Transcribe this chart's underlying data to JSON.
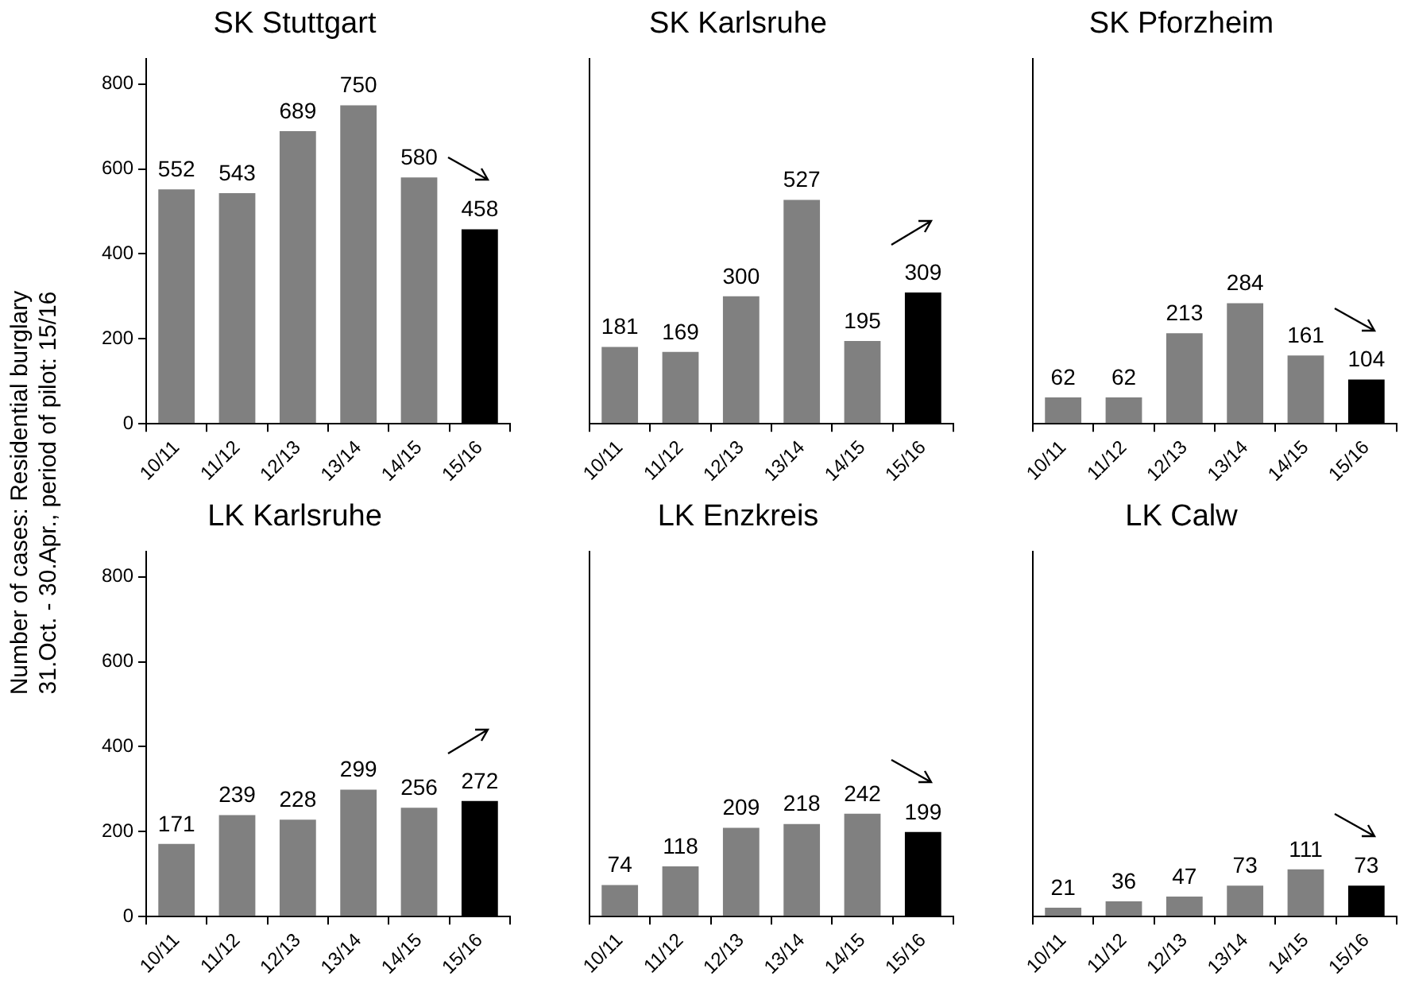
{
  "chart_data": [
    {
      "type": "bar",
      "title": "SK Stuttgart",
      "ylabel": "Number of cases: Residential burglary\n31.Oct. - 30.Apr., period of pilot: 15/16",
      "categories": [
        "10/11",
        "11/12",
        "12/13",
        "13/14",
        "14/15",
        "15/16"
      ],
      "values": [
        552,
        543,
        689,
        750,
        580,
        458
      ],
      "colors": [
        "#808080",
        "#808080",
        "#808080",
        "#808080",
        "#808080",
        "#000000"
      ],
      "ylim": [
        0,
        860
      ],
      "yticks": [
        0,
        200,
        400,
        600,
        800
      ],
      "data_labels": true,
      "grid": false,
      "legend": false
    },
    {
      "type": "bar",
      "title": "SK Karlsruhe",
      "categories": [
        "10/11",
        "11/12",
        "12/13",
        "13/14",
        "14/15",
        "15/16"
      ],
      "values": [
        181,
        169,
        300,
        527,
        195,
        309
      ],
      "colors": [
        "#808080",
        "#808080",
        "#808080",
        "#808080",
        "#808080",
        "#000000"
      ],
      "ylim": [
        0,
        860
      ],
      "yticks": [
        0,
        200,
        400,
        600,
        800
      ],
      "tick_labels": "x",
      "data_labels": true,
      "grid": false,
      "legend": false
    },
    {
      "type": "bar",
      "title": "SK Pforzheim",
      "categories": [
        "10/11",
        "11/12",
        "12/13",
        "13/14",
        "14/15",
        "15/16"
      ],
      "values": [
        62,
        62,
        213,
        284,
        161,
        104
      ],
      "colors": [
        "#808080",
        "#808080",
        "#808080",
        "#808080",
        "#808080",
        "#000000"
      ],
      "ylim": [
        0,
        860
      ],
      "yticks": [
        0,
        200,
        400,
        600,
        800
      ],
      "tick_labels": "x",
      "data_labels": true,
      "grid": false,
      "legend": false
    },
    {
      "type": "bar",
      "title": "LK Karlsruhe",
      "categories": [
        "10/11",
        "11/12",
        "12/13",
        "13/14",
        "14/15",
        "15/16"
      ],
      "values": [
        171,
        239,
        228,
        299,
        256,
        272
      ],
      "colors": [
        "#808080",
        "#808080",
        "#808080",
        "#808080",
        "#808080",
        "#000000"
      ],
      "ylim": [
        0,
        860
      ],
      "yticks": [
        0,
        200,
        400,
        600,
        800
      ],
      "data_labels": true,
      "grid": false,
      "legend": false
    },
    {
      "type": "bar",
      "title": "LK Enzkreis",
      "categories": [
        "10/11",
        "11/12",
        "12/13",
        "13/14",
        "14/15",
        "15/16"
      ],
      "values": [
        74,
        118,
        209,
        218,
        242,
        199
      ],
      "colors": [
        "#808080",
        "#808080",
        "#808080",
        "#808080",
        "#808080",
        "#000000"
      ],
      "ylim": [
        0,
        860
      ],
      "yticks": [
        0,
        200,
        400,
        600,
        800
      ],
      "tick_labels": "x",
      "data_labels": true,
      "grid": false,
      "legend": false
    },
    {
      "type": "bar",
      "title": "LK Calw",
      "categories": [
        "10/11",
        "11/12",
        "12/13",
        "13/14",
        "14/15",
        "15/16"
      ],
      "values": [
        21,
        36,
        47,
        73,
        111,
        73
      ],
      "colors": [
        "#808080",
        "#808080",
        "#808080",
        "#808080",
        "#808080",
        "#000000"
      ],
      "ylim": [
        0,
        860
      ],
      "yticks": [
        0,
        200,
        400,
        600,
        800
      ],
      "tick_labels": "x",
      "data_labels": true,
      "grid": false,
      "legend": false
    }
  ]
}
